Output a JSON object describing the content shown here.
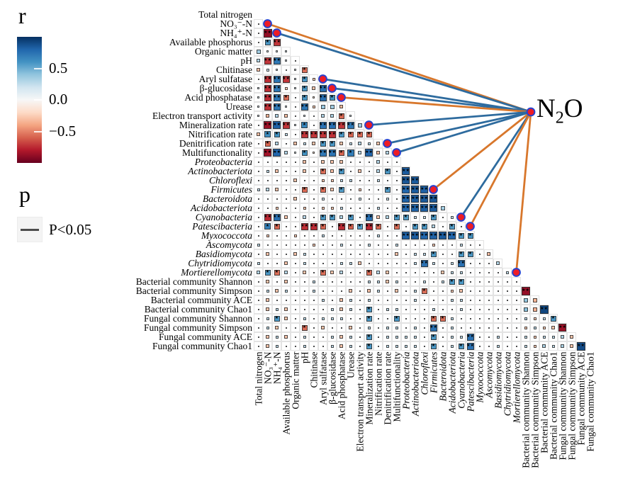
{
  "legend_r": {
    "title": "r",
    "tick_labels": [
      "0.5",
      "0.0",
      "−0.5"
    ],
    "tick_values": [
      0.5,
      0.0,
      -0.5
    ]
  },
  "legend_p": {
    "title": "p",
    "entries": [
      {
        "label": "P<0.05",
        "line_color": "#4d4d4d"
      }
    ]
  },
  "chart_data": {
    "type": "heatmap",
    "subtype": "lower-triangle correlation matrix with Mantel-test network",
    "variables": [
      "Total nitrogen",
      "NO₃⁻-N",
      "NH₄⁺-N",
      "Available phosphorus",
      "Organic matter",
      "pH",
      "Chitinase",
      "Aryl sulfatase",
      "β-glucosidase",
      "Acid phosphatase",
      "Urease",
      "Electron transport activity",
      "Mineralization rate",
      "Nitrification rate",
      "Denitrification rate",
      "Multifunctionality",
      "Proteobacteria",
      "Actinobacteriota",
      "Chloroflexi",
      "Firmicutes",
      "Bacteroidota",
      "Acidobacteriota",
      "Cyanobacteria",
      "Patescibacteria",
      "Myxococcota",
      "Ascomycota",
      "Basidiomycota",
      "Chytridiomycota",
      "Mortierellomycota",
      "Bacterial community Shannon",
      "Bacterial community Simpson",
      "Bacterial community ACE",
      "Bacterial community Chao1",
      "Fungal community Shannon",
      "Fungal community Simpson",
      "Fungal community ACE",
      "Fungal community Chao1"
    ],
    "italic_variable_range": {
      "from": 17,
      "to": 29
    },
    "color_scale_stops": [
      [
        -1.0,
        "#67001f"
      ],
      [
        -0.8,
        "#b2182b"
      ],
      [
        -0.6,
        "#d6604d"
      ],
      [
        -0.4,
        "#f4a582"
      ],
      [
        -0.2,
        "#fddbc7"
      ],
      [
        0.0,
        "#f7f7f7"
      ],
      [
        0.2,
        "#d1e5f0"
      ],
      [
        0.4,
        "#92c5de"
      ],
      [
        0.6,
        "#4393c3"
      ],
      [
        0.8,
        "#2166ac"
      ],
      [
        1.0,
        "#053061"
      ]
    ],
    "significance_markers": {
      "marker_char": "★",
      "one_star_min_abs_r_x100": 55,
      "two_star_min_abs_r_x100": 72
    },
    "r_values_x100_lower_triangle": [
      [
        5
      ],
      [
        8,
        -88
      ],
      [
        5,
        58,
        -72
      ],
      [
        35,
        10,
        12,
        15
      ],
      [
        30,
        -72,
        72,
        12,
        8
      ],
      [
        -30,
        20,
        12,
        5,
        10,
        -56
      ],
      [
        5,
        -74,
        73,
        -72,
        12,
        58,
        -25
      ],
      [
        12,
        -74,
        72,
        -25,
        10,
        58,
        -28,
        76
      ],
      [
        10,
        -75,
        73,
        -56,
        6,
        58,
        -12,
        76,
        60
      ],
      [
        12,
        -73,
        72,
        15,
        8,
        73,
        -25,
        38,
        36,
        -32
      ],
      [
        12,
        -34,
        30,
        -30,
        8,
        12,
        8,
        30,
        32,
        -57,
        10
      ],
      [
        6,
        -86,
        82,
        -72,
        10,
        66,
        8,
        75,
        76,
        -72,
        72,
        36
      ],
      [
        -30,
        62,
        60,
        25,
        8,
        -72,
        -72,
        -72,
        -73,
        58,
        -58,
        -57,
        -58
      ],
      [
        8,
        -58,
        30,
        8,
        -30,
        25,
        -28,
        58,
        58,
        -28,
        25,
        30,
        26,
        -28
      ],
      [
        8,
        -84,
        80,
        30,
        10,
        60,
        -12,
        72,
        74,
        -58,
        70,
        30,
        80,
        -30,
        30
      ],
      [
        4,
        8,
        8,
        8,
        4,
        -30,
        8,
        -28,
        -28,
        -28,
        8,
        8,
        4,
        30,
        8,
        4
      ],
      [
        4,
        25,
        -28,
        4,
        8,
        -28,
        8,
        -56,
        -30,
        58,
        8,
        -28,
        8,
        28,
        58,
        8,
        84
      ],
      [
        6,
        6,
        4,
        8,
        -28,
        8,
        8,
        -26,
        -26,
        25,
        25,
        8,
        8,
        25,
        8,
        4,
        86,
        84
      ],
      [
        25,
        28,
        -28,
        8,
        6,
        -57,
        6,
        -56,
        -28,
        56,
        4,
        -26,
        8,
        8,
        56,
        8,
        80,
        84,
        82
      ],
      [
        6,
        8,
        8,
        8,
        -28,
        8,
        4,
        22,
        8,
        8,
        4,
        22,
        4,
        4,
        25,
        8,
        82,
        84,
        85,
        86
      ],
      [
        8,
        8,
        -26,
        6,
        4,
        -26,
        8,
        -26,
        -26,
        25,
        8,
        8,
        8,
        25,
        8,
        4,
        80,
        82,
        83,
        84,
        35
      ],
      [
        8,
        -76,
        76,
        -28,
        8,
        28,
        8,
        58,
        58,
        30,
        58,
        8,
        76,
        -28,
        30,
        58,
        56,
        25,
        22,
        58,
        4,
        25
      ],
      [
        4,
        68,
        -58,
        -8,
        -8,
        -74,
        -75,
        -58,
        -8,
        -75,
        -60,
        56,
        -76,
        -58,
        -8,
        -56,
        8,
        58,
        58,
        30,
        8,
        56,
        6
      ],
      [
        8,
        -26,
        8,
        6,
        -26,
        8,
        8,
        26,
        8,
        8,
        8,
        6,
        4,
        26,
        8,
        8,
        82,
        84,
        80,
        82,
        84,
        80,
        58,
        60
      ],
      [
        25,
        4,
        4,
        8,
        8,
        8,
        -26,
        8,
        8,
        26,
        8,
        8,
        25,
        8,
        8,
        25,
        4,
        8,
        8,
        -26,
        8,
        8,
        25,
        8,
        8
      ],
      [
        8,
        -28,
        8,
        6,
        -28,
        26,
        8,
        8,
        8,
        8,
        8,
        8,
        8,
        8,
        4,
        -28,
        6,
        26,
        26,
        58,
        6,
        8,
        58,
        58,
        8,
        -30
      ],
      [
        26,
        8,
        8,
        -28,
        8,
        26,
        8,
        8,
        8,
        26,
        26,
        -28,
        6,
        6,
        6,
        8,
        8,
        26,
        75,
        26,
        8,
        26,
        75,
        8,
        8,
        8,
        30
      ],
      [
        30,
        58,
        -56,
        28,
        8,
        -28,
        8,
        -56,
        -28,
        28,
        8,
        8,
        -56,
        28,
        -28,
        8,
        8,
        8,
        4,
        8,
        -28,
        26,
        26,
        8,
        8,
        8,
        8,
        25
      ],
      [
        8,
        -28,
        8,
        -28,
        6,
        8,
        26,
        8,
        4,
        8,
        8,
        8,
        26,
        26,
        -28,
        26,
        8,
        4,
        26,
        8,
        26,
        58,
        58,
        8,
        8,
        8,
        8,
        8,
        8
      ],
      [
        8,
        26,
        -28,
        26,
        8,
        4,
        26,
        8,
        8,
        8,
        -28,
        6,
        -30,
        26,
        8,
        -28,
        8,
        26,
        -56,
        6,
        8,
        -26,
        -28,
        8,
        8,
        8,
        8,
        8,
        8,
        -88
      ],
      [
        8,
        -28,
        8,
        8,
        4,
        8,
        8,
        26,
        8,
        -28,
        26,
        8,
        26,
        8,
        8,
        8,
        6,
        26,
        8,
        8,
        8,
        26,
        26,
        8,
        8,
        8,
        8,
        8,
        8,
        40,
        -35
      ],
      [
        6,
        -28,
        26,
        -28,
        4,
        8,
        6,
        4,
        26,
        -28,
        26,
        8,
        58,
        8,
        26,
        26,
        8,
        8,
        8,
        26,
        8,
        8,
        26,
        8,
        8,
        8,
        8,
        8,
        8,
        42,
        -36,
        92
      ],
      [
        4,
        26,
        58,
        -28,
        8,
        26,
        8,
        26,
        26,
        26,
        8,
        8,
        58,
        8,
        6,
        58,
        8,
        8,
        8,
        -56,
        -56,
        26,
        8,
        8,
        8,
        8,
        8,
        8,
        8,
        26,
        -26,
        26,
        58
      ],
      [
        6,
        26,
        -28,
        8,
        8,
        -57,
        6,
        -28,
        8,
        4,
        -28,
        8,
        26,
        8,
        26,
        26,
        8,
        26,
        8,
        75,
        8,
        26,
        8,
        8,
        8,
        8,
        8,
        8,
        8,
        -26,
        26,
        -26,
        -28,
        -86
      ],
      [
        6,
        -28,
        26,
        -28,
        8,
        26,
        6,
        4,
        26,
        -28,
        26,
        8,
        58,
        6,
        26,
        26,
        26,
        26,
        8,
        58,
        4,
        26,
        26,
        75,
        8,
        8,
        26,
        8,
        8,
        26,
        -26,
        26,
        26,
        30,
        -28
      ],
      [
        4,
        -28,
        26,
        8,
        8,
        26,
        4,
        4,
        26,
        -28,
        26,
        8,
        58,
        4,
        26,
        26,
        26,
        26,
        8,
        58,
        4,
        26,
        58,
        75,
        8,
        8,
        26,
        8,
        8,
        26,
        -26,
        32,
        26,
        32,
        -28,
        90
      ]
    ],
    "mantel": {
      "node_label": "N₂O",
      "node_label_parts": {
        "base": "N",
        "sub": "2",
        "tail": "O"
      },
      "edge_colors": {
        "blue": "#2e6b9e",
        "orange": "#d8772c"
      },
      "dot_fill": "#ee1c25",
      "dot_ring": "#2742cf",
      "edges": [
        {
          "variable": "NO₃⁻-N",
          "index": 2,
          "color": "orange"
        },
        {
          "variable": "NH₄⁺-N",
          "index": 3,
          "color": "blue"
        },
        {
          "variable": "Aryl sulfatase",
          "index": 8,
          "color": "blue"
        },
        {
          "variable": "β-glucosidase",
          "index": 9,
          "color": "blue"
        },
        {
          "variable": "Acid phosphatase",
          "index": 10,
          "color": "orange"
        },
        {
          "variable": "Mineralization rate",
          "index": 13,
          "color": "blue"
        },
        {
          "variable": "Denitrification rate",
          "index": 15,
          "color": "blue"
        },
        {
          "variable": "Multifunctionality",
          "index": 16,
          "color": "blue"
        },
        {
          "variable": "Firmicutes",
          "index": 20,
          "color": "orange"
        },
        {
          "variable": "Cyanobacteria",
          "index": 23,
          "color": "blue"
        },
        {
          "variable": "Patescibacteria",
          "index": 24,
          "color": "orange"
        },
        {
          "variable": "Mortierellomycota",
          "index": 29,
          "color": "orange"
        }
      ]
    }
  }
}
